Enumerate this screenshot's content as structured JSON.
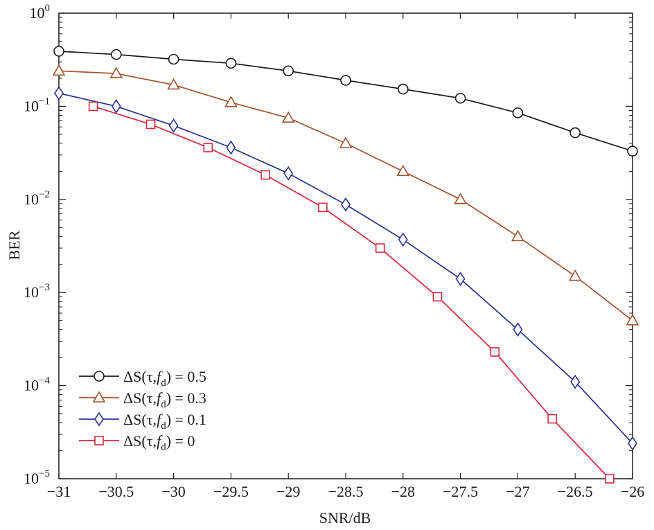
{
  "chart_data": {
    "type": "line",
    "xlabel": "SNR/dB",
    "ylabel": "BER",
    "xlim": [
      -31,
      -26
    ],
    "ylim": [
      1e-05,
      1
    ],
    "yscale": "log",
    "grid": false,
    "legend_position": "bottom-left",
    "x_ticks": [
      -31,
      -30.5,
      -30,
      -29.5,
      -29,
      -28.5,
      -28,
      -27.5,
      -27,
      -26.5,
      -26
    ],
    "x_tick_labels": [
      "−31",
      "−30.5",
      "−30",
      "−29.5",
      "−29",
      "−28.5",
      "−28",
      "−27.5",
      "−27",
      "−26.5",
      "−26"
    ],
    "y_tick_labels": [
      {
        "value": 1,
        "base": "10",
        "exp": "0"
      },
      {
        "value": 0.1,
        "base": "10",
        "exp": "−1"
      },
      {
        "value": 0.01,
        "base": "10",
        "exp": "−2"
      },
      {
        "value": 0.001,
        "base": "10",
        "exp": "−3"
      },
      {
        "value": 0.0001,
        "base": "10",
        "exp": "−4"
      },
      {
        "value": 1e-05,
        "base": "10",
        "exp": "−5"
      }
    ],
    "series": [
      {
        "name": "ΔS(τ,f_d) = 0.5",
        "legend": {
          "prefix": "ΔS(τ,",
          "f": "f",
          "sub": "d",
          "suffix": ") = 0.5"
        },
        "color": "#1a1a1a",
        "marker": "circle",
        "x": [
          -31,
          -30.5,
          -30,
          -29.5,
          -29,
          -28.5,
          -28,
          -27.5,
          -27,
          -26.5,
          -26
        ],
        "y": [
          0.39,
          0.36,
          0.32,
          0.29,
          0.24,
          0.19,
          0.153,
          0.122,
          0.085,
          0.052,
          0.033
        ]
      },
      {
        "name": "ΔS(τ,f_d) = 0.3",
        "legend": {
          "prefix": "ΔS(τ,",
          "f": "f",
          "sub": "d",
          "suffix": ") = 0.3"
        },
        "color": "#a0522d",
        "marker": "triangle",
        "x": [
          -31,
          -30.5,
          -30,
          -29.5,
          -29,
          -28.5,
          -28,
          -27.5,
          -27,
          -26.5,
          -26
        ],
        "y": [
          0.24,
          0.225,
          0.17,
          0.11,
          0.075,
          0.04,
          0.02,
          0.01,
          0.004,
          0.0015,
          0.0005
        ]
      },
      {
        "name": "ΔS(τ,f_d) = 0.1",
        "legend": {
          "prefix": "ΔS(τ,",
          "f": "f",
          "sub": "d",
          "suffix": ") = 0.1"
        },
        "color": "#27308f",
        "marker": "diamond",
        "x": [
          -31,
          -30.5,
          -30,
          -29.5,
          -29,
          -28.5,
          -28,
          -27.5,
          -27,
          -26.5,
          -26
        ],
        "y": [
          0.138,
          0.1,
          0.062,
          0.036,
          0.019,
          0.0088,
          0.0037,
          0.0014,
          0.0004,
          0.00011,
          2.4e-05
        ]
      },
      {
        "name": "ΔS(τ,f_d) = 0",
        "legend": {
          "prefix": "ΔS(τ,",
          "f": "f",
          "sub": "d",
          "suffix": ") = 0"
        },
        "color": "#d7263d",
        "marker": "square",
        "x": [
          -30.7,
          -30.2,
          -29.7,
          -29.2,
          -28.7,
          -28.2,
          -27.7,
          -27.2,
          -26.7,
          -26.2
        ],
        "y": [
          0.1,
          0.064,
          0.036,
          0.0183,
          0.0082,
          0.003,
          0.0009,
          0.00023,
          4.4e-05,
          1e-05
        ]
      }
    ]
  }
}
